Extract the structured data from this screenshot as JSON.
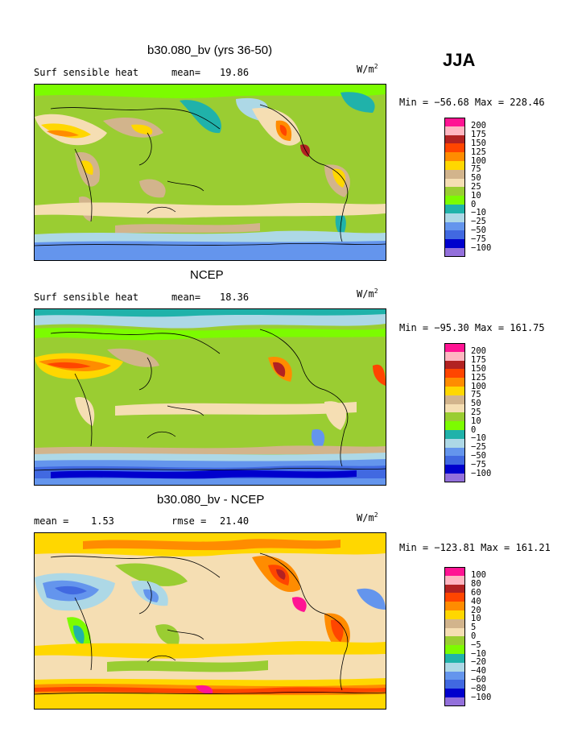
{
  "season": "JJA",
  "units": "W/m",
  "units_exp": "2",
  "legend_colors": [
    "#FF1493",
    "#FFB6C1",
    "#B22222",
    "#FF4500",
    "#FF8C00",
    "#FFD700",
    "#D2B48C",
    "#F5DEB3",
    "#9ACD32",
    "#7CFC00",
    "#20B2AA",
    "#ADD8E6",
    "#6495ED",
    "#4169E1",
    "#0000CD",
    "#9370DB"
  ],
  "panels": [
    {
      "title": "b30.080_bv (yrs 36-50)",
      "left_label": "Surf sensible heat",
      "stat_label": "mean=",
      "stat_value": "19.86",
      "minmax": "Min = −56.68 Max = 228.46",
      "levels": [
        "200",
        "175",
        "150",
        "125",
        "100",
        "75",
        "50",
        "25",
        "10",
        "0",
        "−10",
        "−25",
        "−50",
        "−75",
        "−100"
      ]
    },
    {
      "title": "NCEP",
      "left_label": "Surf sensible heat",
      "stat_label": "mean=",
      "stat_value": "18.36",
      "minmax": "Min = −95.30 Max = 161.75",
      "levels": [
        "200",
        "175",
        "150",
        "125",
        "100",
        "75",
        "50",
        "25",
        "10",
        "0",
        "−10",
        "−25",
        "−50",
        "−75",
        "−100"
      ]
    },
    {
      "title": "b30.080_bv - NCEP",
      "left_label": "mean =",
      "left_value": "1.53",
      "stat_label": "rmse =",
      "stat_value": "21.40",
      "minmax": "Min = −123.81 Max = 161.21",
      "levels": [
        "100",
        "80",
        "60",
        "40",
        "20",
        "10",
        "5",
        "0",
        "−5",
        "−10",
        "−20",
        "−40",
        "−60",
        "−80",
        "−100"
      ]
    }
  ]
}
